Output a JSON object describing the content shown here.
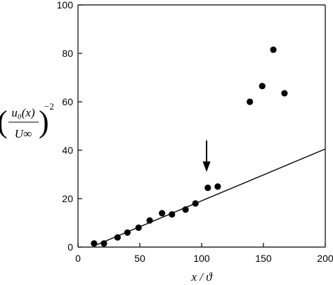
{
  "chart_data": {
    "type": "scatter",
    "xlabel": "x / ϑ",
    "ylabel": {
      "numerator": "u₀(x)",
      "denominator": "U∞",
      "exponent": "−2"
    },
    "xlim": [
      0,
      200
    ],
    "ylim": [
      0,
      100
    ],
    "xticks": [
      0,
      50,
      100,
      150,
      200
    ],
    "yticks": [
      0,
      20,
      40,
      60,
      80,
      100
    ],
    "grid": false,
    "series": [
      {
        "kind": "points",
        "x": [
          13,
          21,
          32,
          40,
          49,
          58,
          68,
          76,
          87,
          95,
          105,
          113,
          139,
          149,
          158,
          167
        ],
        "y": [
          1.5,
          1.5,
          4,
          6,
          8,
          11,
          14,
          13.5,
          15.5,
          18,
          24.5,
          25,
          60,
          66.5,
          81.5,
          63.5
        ]
      },
      {
        "kind": "line",
        "x": [
          13,
          200
        ],
        "y": [
          0.5,
          40.5
        ]
      }
    ],
    "annotations": [
      {
        "kind": "arrow",
        "x": 104,
        "y_from": 44,
        "y_to": 31
      }
    ]
  }
}
